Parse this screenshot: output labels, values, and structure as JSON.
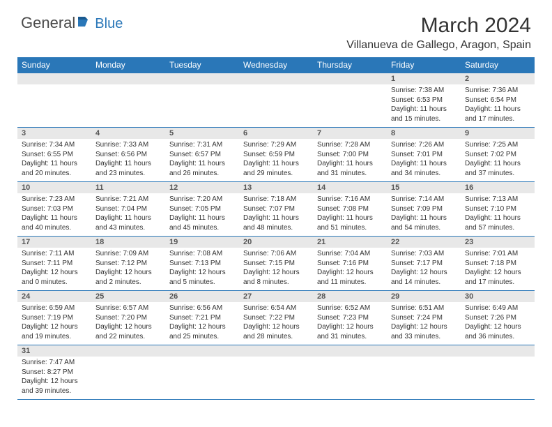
{
  "brand": {
    "part1": "General",
    "part2": "Blue"
  },
  "title": "March 2024",
  "location": "Villanueva de Gallego, Aragon, Spain",
  "colors": {
    "accent": "#2a77b8",
    "header_bg": "#2a77b8",
    "daynum_bg": "#e8e8e8"
  },
  "weekdays": [
    "Sunday",
    "Monday",
    "Tuesday",
    "Wednesday",
    "Thursday",
    "Friday",
    "Saturday"
  ],
  "weeks": [
    [
      null,
      null,
      null,
      null,
      null,
      {
        "n": "1",
        "sr": "Sunrise: 7:38 AM",
        "ss": "Sunset: 6:53 PM",
        "d1": "Daylight: 11 hours",
        "d2": "and 15 minutes."
      },
      {
        "n": "2",
        "sr": "Sunrise: 7:36 AM",
        "ss": "Sunset: 6:54 PM",
        "d1": "Daylight: 11 hours",
        "d2": "and 17 minutes."
      }
    ],
    [
      {
        "n": "3",
        "sr": "Sunrise: 7:34 AM",
        "ss": "Sunset: 6:55 PM",
        "d1": "Daylight: 11 hours",
        "d2": "and 20 minutes."
      },
      {
        "n": "4",
        "sr": "Sunrise: 7:33 AM",
        "ss": "Sunset: 6:56 PM",
        "d1": "Daylight: 11 hours",
        "d2": "and 23 minutes."
      },
      {
        "n": "5",
        "sr": "Sunrise: 7:31 AM",
        "ss": "Sunset: 6:57 PM",
        "d1": "Daylight: 11 hours",
        "d2": "and 26 minutes."
      },
      {
        "n": "6",
        "sr": "Sunrise: 7:29 AM",
        "ss": "Sunset: 6:59 PM",
        "d1": "Daylight: 11 hours",
        "d2": "and 29 minutes."
      },
      {
        "n": "7",
        "sr": "Sunrise: 7:28 AM",
        "ss": "Sunset: 7:00 PM",
        "d1": "Daylight: 11 hours",
        "d2": "and 31 minutes."
      },
      {
        "n": "8",
        "sr": "Sunrise: 7:26 AM",
        "ss": "Sunset: 7:01 PM",
        "d1": "Daylight: 11 hours",
        "d2": "and 34 minutes."
      },
      {
        "n": "9",
        "sr": "Sunrise: 7:25 AM",
        "ss": "Sunset: 7:02 PM",
        "d1": "Daylight: 11 hours",
        "d2": "and 37 minutes."
      }
    ],
    [
      {
        "n": "10",
        "sr": "Sunrise: 7:23 AM",
        "ss": "Sunset: 7:03 PM",
        "d1": "Daylight: 11 hours",
        "d2": "and 40 minutes."
      },
      {
        "n": "11",
        "sr": "Sunrise: 7:21 AM",
        "ss": "Sunset: 7:04 PM",
        "d1": "Daylight: 11 hours",
        "d2": "and 43 minutes."
      },
      {
        "n": "12",
        "sr": "Sunrise: 7:20 AM",
        "ss": "Sunset: 7:05 PM",
        "d1": "Daylight: 11 hours",
        "d2": "and 45 minutes."
      },
      {
        "n": "13",
        "sr": "Sunrise: 7:18 AM",
        "ss": "Sunset: 7:07 PM",
        "d1": "Daylight: 11 hours",
        "d2": "and 48 minutes."
      },
      {
        "n": "14",
        "sr": "Sunrise: 7:16 AM",
        "ss": "Sunset: 7:08 PM",
        "d1": "Daylight: 11 hours",
        "d2": "and 51 minutes."
      },
      {
        "n": "15",
        "sr": "Sunrise: 7:14 AM",
        "ss": "Sunset: 7:09 PM",
        "d1": "Daylight: 11 hours",
        "d2": "and 54 minutes."
      },
      {
        "n": "16",
        "sr": "Sunrise: 7:13 AM",
        "ss": "Sunset: 7:10 PM",
        "d1": "Daylight: 11 hours",
        "d2": "and 57 minutes."
      }
    ],
    [
      {
        "n": "17",
        "sr": "Sunrise: 7:11 AM",
        "ss": "Sunset: 7:11 PM",
        "d1": "Daylight: 12 hours",
        "d2": "and 0 minutes."
      },
      {
        "n": "18",
        "sr": "Sunrise: 7:09 AM",
        "ss": "Sunset: 7:12 PM",
        "d1": "Daylight: 12 hours",
        "d2": "and 2 minutes."
      },
      {
        "n": "19",
        "sr": "Sunrise: 7:08 AM",
        "ss": "Sunset: 7:13 PM",
        "d1": "Daylight: 12 hours",
        "d2": "and 5 minutes."
      },
      {
        "n": "20",
        "sr": "Sunrise: 7:06 AM",
        "ss": "Sunset: 7:15 PM",
        "d1": "Daylight: 12 hours",
        "d2": "and 8 minutes."
      },
      {
        "n": "21",
        "sr": "Sunrise: 7:04 AM",
        "ss": "Sunset: 7:16 PM",
        "d1": "Daylight: 12 hours",
        "d2": "and 11 minutes."
      },
      {
        "n": "22",
        "sr": "Sunrise: 7:03 AM",
        "ss": "Sunset: 7:17 PM",
        "d1": "Daylight: 12 hours",
        "d2": "and 14 minutes."
      },
      {
        "n": "23",
        "sr": "Sunrise: 7:01 AM",
        "ss": "Sunset: 7:18 PM",
        "d1": "Daylight: 12 hours",
        "d2": "and 17 minutes."
      }
    ],
    [
      {
        "n": "24",
        "sr": "Sunrise: 6:59 AM",
        "ss": "Sunset: 7:19 PM",
        "d1": "Daylight: 12 hours",
        "d2": "and 19 minutes."
      },
      {
        "n": "25",
        "sr": "Sunrise: 6:57 AM",
        "ss": "Sunset: 7:20 PM",
        "d1": "Daylight: 12 hours",
        "d2": "and 22 minutes."
      },
      {
        "n": "26",
        "sr": "Sunrise: 6:56 AM",
        "ss": "Sunset: 7:21 PM",
        "d1": "Daylight: 12 hours",
        "d2": "and 25 minutes."
      },
      {
        "n": "27",
        "sr": "Sunrise: 6:54 AM",
        "ss": "Sunset: 7:22 PM",
        "d1": "Daylight: 12 hours",
        "d2": "and 28 minutes."
      },
      {
        "n": "28",
        "sr": "Sunrise: 6:52 AM",
        "ss": "Sunset: 7:23 PM",
        "d1": "Daylight: 12 hours",
        "d2": "and 31 minutes."
      },
      {
        "n": "29",
        "sr": "Sunrise: 6:51 AM",
        "ss": "Sunset: 7:24 PM",
        "d1": "Daylight: 12 hours",
        "d2": "and 33 minutes."
      },
      {
        "n": "30",
        "sr": "Sunrise: 6:49 AM",
        "ss": "Sunset: 7:26 PM",
        "d1": "Daylight: 12 hours",
        "d2": "and 36 minutes."
      }
    ],
    [
      {
        "n": "31",
        "sr": "Sunrise: 7:47 AM",
        "ss": "Sunset: 8:27 PM",
        "d1": "Daylight: 12 hours",
        "d2": "and 39 minutes."
      },
      null,
      null,
      null,
      null,
      null,
      null
    ]
  ]
}
